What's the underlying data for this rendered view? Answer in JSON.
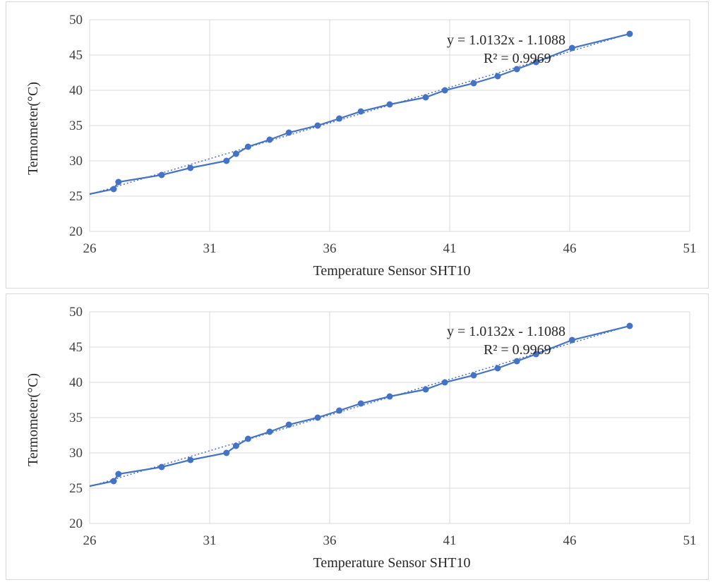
{
  "colors": {
    "series": "#4472c4",
    "trendline": "#4472c4",
    "grid": "#d9d9d9",
    "text": "#404040"
  },
  "chart_data": [
    {
      "type": "scatter",
      "title": "",
      "xlabel": "Temperature Sensor SHT10",
      "ylabel": "Termometer(°C)",
      "xlim": [
        26,
        51
      ],
      "ylim": [
        20,
        50
      ],
      "x_ticks": [
        "26",
        "31",
        "36",
        "41",
        "46",
        "51"
      ],
      "y_ticks": [
        "20",
        "25",
        "30",
        "35",
        "40",
        "45",
        "50"
      ],
      "grid": true,
      "series": [
        {
          "x": [
            26,
            27.0,
            27.2,
            29.0,
            30.2,
            31.7,
            32.1,
            32.6,
            33.5,
            34.3,
            35.5,
            36.4,
            37.3,
            38.5,
            40.0,
            40.8,
            42.0,
            43.0,
            43.8,
            44.6,
            46.1,
            48.5
          ],
          "y": [
            25.3,
            26,
            27,
            28,
            29,
            30,
            31,
            32,
            33,
            34,
            35,
            36,
            37,
            38,
            39,
            40,
            41,
            42,
            43,
            44,
            46,
            48
          ]
        }
      ],
      "trendline": {
        "type": "linear",
        "equation": "y = 1.0132x - 1.1088",
        "r_squared": "R² = 0.9969"
      }
    },
    {
      "type": "scatter",
      "title": "",
      "xlabel": "Temperature Sensor SHT10",
      "ylabel": "Termometer(°C)",
      "xlim": [
        26,
        51
      ],
      "ylim": [
        20,
        50
      ],
      "x_ticks": [
        "26",
        "31",
        "36",
        "41",
        "46",
        "51"
      ],
      "y_ticks": [
        "20",
        "25",
        "30",
        "35",
        "40",
        "45",
        "50"
      ],
      "grid": true,
      "series": [
        {
          "x": [
            26,
            27.0,
            27.2,
            29.0,
            30.2,
            31.7,
            32.1,
            32.6,
            33.5,
            34.3,
            35.5,
            36.4,
            37.3,
            38.5,
            40.0,
            40.8,
            42.0,
            43.0,
            43.8,
            44.6,
            46.1,
            48.5
          ],
          "y": [
            25.3,
            26,
            27,
            28,
            29,
            30,
            31,
            32,
            33,
            34,
            35,
            36,
            37,
            38,
            39,
            40,
            41,
            42,
            43,
            44,
            46,
            48
          ]
        }
      ],
      "trendline": {
        "type": "linear",
        "equation": "y = 1.0132x - 1.1088",
        "r_squared": "R² = 0.9969"
      }
    }
  ]
}
